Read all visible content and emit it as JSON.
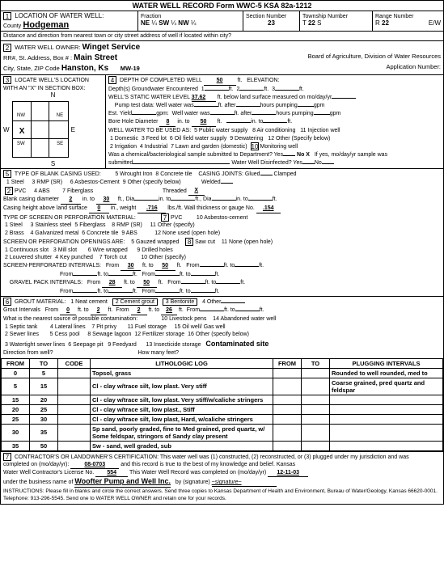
{
  "form_header": "WATER WELL RECORD    Form WWC-5    KSA 82a-1212",
  "loc": {
    "num": "1",
    "title": "LOCATION OF WATER WELL:",
    "county_lbl": "County",
    "county": "Hodgeman",
    "fraction_lbl": "Fraction",
    "frac1": "NE",
    "frac2": "SW",
    "frac3": "NW",
    "q": "¼",
    "section_lbl": "Section Number",
    "section": "23",
    "township_lbl": "Township Number",
    "t_pre": "T",
    "township": "22",
    "t_s": "S",
    "range_lbl": "Range Number",
    "r_pre": "R",
    "range": "22",
    "r_ew": "E/W",
    "dist_lbl": "Distance and direction from nearest town or city street address of well if located within city?"
  },
  "owner": {
    "num": "2",
    "title": "WATER WELL OWNER:",
    "name": "Winget Service",
    "addr_lbl": "RR#, St. Address, Box #  :",
    "addr": "Main Street",
    "city_lbl": "City, State, ZIP Code",
    "city": "Hanston, Ks",
    "mw": "MW-19",
    "board": "Board of Agriculture, Division of Water Resources",
    "app_lbl": "Application Number:"
  },
  "locbox": {
    "num": "3",
    "title": "LOCATE WELL'S LOCATION WITH AN \"X\" IN SECTION BOX:",
    "n": "N",
    "s": "S",
    "w": "W",
    "e": "E",
    "nw": "NW",
    "ne": "NE",
    "sw": "SW",
    "se": "SE",
    "x": "X",
    "one": "1"
  },
  "well": {
    "num": "4",
    "depth_lbl": "DEPTH OF COMPLETED WELL",
    "depth": "50",
    "ft": "ft.",
    "elev_lbl": "ELEVATION:",
    "gw_lbl": "Depth(s) Groundwater Encountered",
    "gw1": "1",
    "gw2": "2",
    "gw3": "3",
    "swl_lbl": "WELL'S STATIC WATER LEVEL",
    "swl": "37.62",
    "swl_note": "ft. below land surface measured on mo/day/yr",
    "pump_lbl": "Pump test data:",
    "ww": "Well water was",
    "after": "ft. after",
    "hrs": "hours pumping",
    "gpm": "gpm",
    "est_lbl": "Est. Yield",
    "bore_lbl": "Bore Hole Diameter",
    "bore1": "8",
    "bore_to": "50",
    "in_to": "in. to",
    "in_ft": "ft.",
    "use_lbl": "WELL WATER TO BE USED AS:",
    "u1": "1  Domestic",
    "u2": "2  Irrigation",
    "u3": "3  Feed lot",
    "u4": "4  Industrial",
    "u5": "5  Public water supply",
    "u6": "6  Oil field water supply",
    "u7": "7  Lawn and garden (domestic)",
    "u8": "8  Air conditioning",
    "u9": "9  Dewatering",
    "u10": "Monitoring well",
    "u10n": "10",
    "u11": "11  Injection well",
    "u12": "12  Other (Specify below)",
    "chem_lbl": "Was a chemical/bacteriological sample submitted to Department? Yes",
    "nox": "No X",
    "chem2": "If yes, mo/day/yr sample was",
    "sub": "submitted",
    "disinf": "Water Well Disinfected? Yes",
    "no": "No"
  },
  "casing": {
    "num": "5",
    "title": "TYPE OF BLANK CASING USED:",
    "c1": "1  Steel",
    "c2": "PVC",
    "c2n": "2",
    "c3": "3  RMP (SR)",
    "c4": "4  ABS",
    "c5": "5  Wrought Iron",
    "c6": "6  Asbestos-Cement",
    "c7": "7  Fiberglass",
    "c8": "8  Concrete tile",
    "c9": "9  Other (specify below)",
    "joints_lbl": "CASING JOINTS:",
    "glued": "Glued",
    "clamped": "Clamped",
    "welded": "Welded",
    "threaded": "Threaded",
    "thr_x": "X",
    "dia_lbl": "Blank casing diameter",
    "dia1": "2",
    "dia_to": "30",
    "into": "in. to",
    "ftdia": "ft., Dia",
    "dia_end": "in. to",
    "height_lbl": "Casing height above land surface",
    "height": "0",
    "wt_lbl": "in., weight",
    "wt": ".716",
    "lbsft": "lbs./ft.",
    "wall_lbl": "Wall thickness or gauge No.",
    "wall": ".154",
    "screen_lbl": "TYPE OF SCREEN OR PERFORATION MATERIAL:",
    "s1": "1  Steel",
    "s2": "2  Brass",
    "s3": "3  Stainless steel",
    "s4": "4  Galvanized metal",
    "s5": "5  Fiberglass",
    "s6": "6  Concrete tile",
    "s7": "PVC",
    "s7n": "7",
    "s8": "8  RMP (SR)",
    "s9": "9  ABS",
    "s10": "10  Asbestos-cement",
    "s11": "11  Other (specify)",
    "s12": "12  None used (open hole)",
    "open_lbl": "SCREEN OR PERFORATION OPENINGS ARE:",
    "o1": "1  Continuous slot",
    "o2": "2  Louvered shutter",
    "o3": "3  Mill slot",
    "o4": "4  Key punched",
    "o5": "5  Gauzed wrapped",
    "o6": "6  Wire wrapped",
    "o7": "7  Torch cut",
    "o8": "Saw cut",
    "o8n": "8",
    "o9": "9  Drilled holes",
    "o10": "10  Other (specify)",
    "o11": "11  None (open hole)",
    "spi_lbl": "SCREEN-PERFORATED INTERVALS:",
    "from": "From",
    "to": "to",
    "ft": "ft.",
    "spi_f": "30",
    "spi_t": "50",
    "gp_lbl": "GRAVEL PACK INTERVALS:",
    "gp_f": "28",
    "gp_t": "50"
  },
  "grout": {
    "num": "6",
    "title": "GROUT MATERIAL:",
    "g1": "1  Neat cement",
    "g2": "2  Cement grout",
    "g3": "3  Bentonite",
    "g4": "4  Other",
    "gi_lbl": "Grout Intervals",
    "from": "From",
    "gi_f1": "0",
    "to": "ft. to",
    "gi_t1": "2",
    "gi_f2": "2",
    "gi_t2": "26",
    "ft": "ft.",
    "src_lbl": "What is the nearest source of possible contamination:",
    "p1": "1  Septic tank",
    "p2": "2  Sewer lines",
    "p3": "3  Watertight sewer lines",
    "p4": "4  Lateral lines",
    "p5": "5  Cess pool",
    "p6": "6  Seepage pit",
    "p7": "7  Pit privy",
    "p8": "8  Sewage lagoon",
    "p9": "9  Feedyard",
    "p10": "10  Livestock pens",
    "p11": "11  Fuel storage",
    "p12": "12  Fertilizer storage",
    "p13": "13  Insecticide storage",
    "p14": "14  Abandoned water well",
    "p15": "15  Oil well/ Gas well",
    "p16": "16  Other (specify below)",
    "cont": "Contaminated site",
    "dir_lbl": "Direction from well?",
    "feet_lbl": "How many feet?"
  },
  "log": {
    "h_from": "FROM",
    "h_to": "TO",
    "h_code": "CODE",
    "h_lith": "LITHOLOGIC LOG",
    "h_from2": "FROM",
    "h_to2": "TO",
    "h_plug": "PLUGGING INTERVALS",
    "rows": [
      {
        "f": "0",
        "t": "5",
        "c": "",
        "l": "Topsol, grass",
        "pf": "",
        "pt": "",
        "p": "Rounded to well rounded, med to"
      },
      {
        "f": "5",
        "t": "15",
        "c": "",
        "l": "Cl - clay w/trace silt, low plast. Very stiff",
        "pf": "",
        "pt": "",
        "p": "Coarse grained, pred quartz and feldspar"
      },
      {
        "f": "15",
        "t": "20",
        "c": "",
        "l": "Cl - clay w/trace silt, low plast. Very stiff/w/caliche stringers",
        "pf": "",
        "pt": "",
        "p": ""
      },
      {
        "f": "20",
        "t": "25",
        "c": "",
        "l": "Cl - clay w/trace silt, low plast., Stiff",
        "pf": "",
        "pt": "",
        "p": ""
      },
      {
        "f": "25",
        "t": "30",
        "c": "",
        "l": "Cl - clay w/trace silt, low plast, Hard, w/caliche stringers",
        "pf": "",
        "pt": "",
        "p": ""
      },
      {
        "f": "30",
        "t": "35",
        "c": "",
        "l": "Sp sand, poorly graded, fine to Med grained, pred quartz, w/ Some feldspar, stringors of Sandy clay present",
        "pf": "",
        "pt": "",
        "p": ""
      },
      {
        "f": "35",
        "t": "50",
        "c": "",
        "l": "Sw - sand, well graded, sub",
        "pf": "",
        "pt": "",
        "p": ""
      }
    ]
  },
  "cert": {
    "num": "7",
    "text": "CONTRACTOR'S OR LANDOWNER'S CERTIFICATION: This water well was (1) constructed, (2) reconstructed, or (3) plugged under my jurisdiction and was",
    "comp_lbl": "completed on (mo/day/yr):",
    "date1": "08-0703",
    "rec": " and this record is true to the best of my knowledge and belief.  Kansas",
    "lic_lbl": "Water Well Contractor's License No.",
    "lic": "554",
    "comp2_lbl": "This Water Well Record was completed on (mo/day/yr)",
    "date2": "12-11-03",
    "bus_lbl": "under the business name of",
    "bus": "Woofter Pump and Well Inc.",
    "sig_lbl": "by (signature)",
    "instr": "INSTRUCTIONS:  Please fill in blanks and circle the correct answers.  Send three copies to Kansas Department of Health and Environment, Bureau of Water/Geology, Kansas 66620-0001.  Telephone:  913-296-5545.  Send one to WATER WELL OWNER and retain one for your records."
  }
}
